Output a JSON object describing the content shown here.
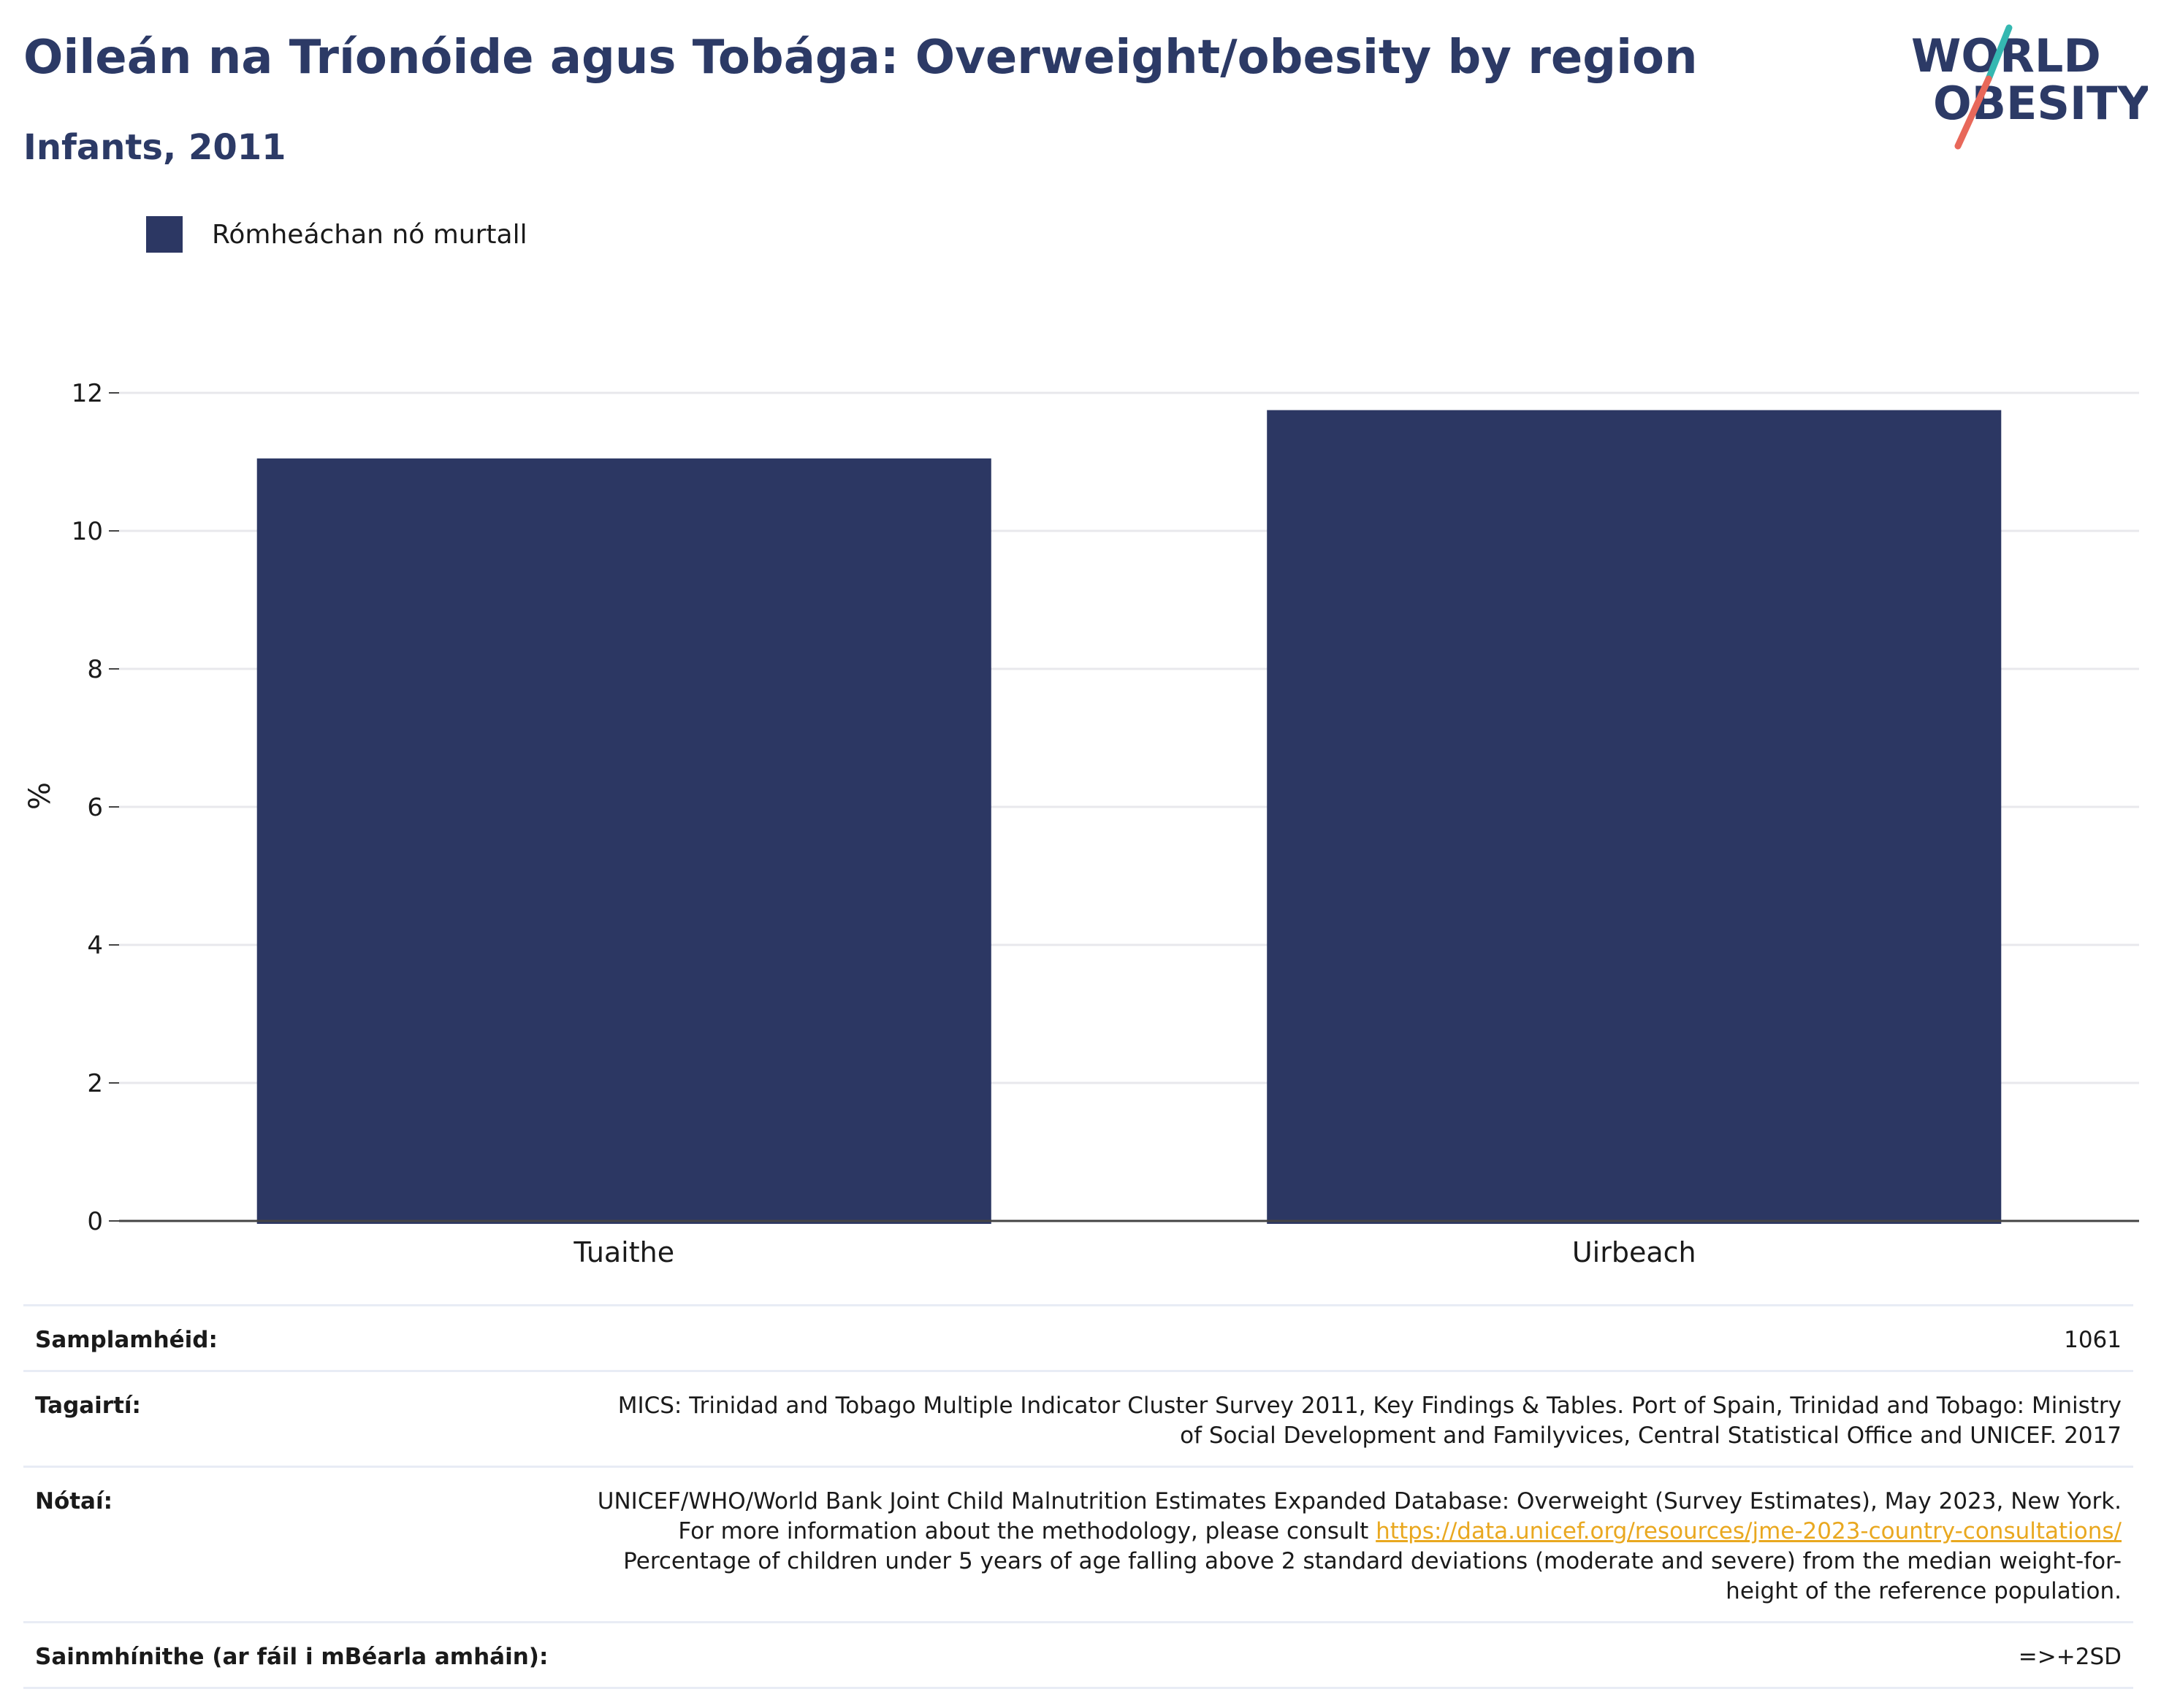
{
  "header": {
    "title": "Oileán na Tríonóide agus Tobága: Overweight/obesity by region",
    "subtitle": "Infants, 2011"
  },
  "logo": {
    "line1": "WORLD",
    "line2": "OBESITY",
    "colors": {
      "text": "#2c3a66",
      "slash_top": "#35b8b1",
      "slash_bottom": "#e8685a"
    }
  },
  "colors": {
    "bar": "#2c3763",
    "grid": "#e8e8ec",
    "axis": "#444444"
  },
  "chart_data": {
    "type": "bar",
    "categories": [
      "Tuaithe",
      "Uirbeach"
    ],
    "series": [
      {
        "name": "Rómheáchan nó murtall",
        "values": [
          11.05,
          11.75
        ]
      }
    ],
    "ylabel": "%",
    "xlabel": "",
    "ylim": [
      0,
      12
    ],
    "yticks": [
      0,
      2,
      4,
      6,
      8,
      10,
      12
    ],
    "grid": true,
    "legend": "top-left"
  },
  "info": {
    "sample_label": "Samplamhéid:",
    "sample_value": "1061",
    "refs_label": "Tagairtí:",
    "refs_value": "MICS: Trinidad and Tobago Multiple Indicator Cluster Survey 2011, Key Findings & Tables. Port of Spain, Trinidad and Tobago: Ministry of Social Development and Familyvices, Central Statistical Office and UNICEF. 2017",
    "notes_label": "Nótaí:",
    "notes_text1": "UNICEF/WHO/World Bank Joint Child Malnutrition Estimates Expanded Database: Overweight (Survey Estimates), May 2023, New York. For more information about the methodology, please consult",
    "notes_link": "https://data.unicef.org/resources/jme-2023-country-consultations/",
    "notes_text2": "Percentage of children under 5 years of age falling above 2 standard deviations (moderate and severe) from the median weight-for-height of the reference population.",
    "defs_label": "Sainmhínithe (ar fáil i mBéarla amháin):",
    "defs_value": "=>+2SD"
  }
}
